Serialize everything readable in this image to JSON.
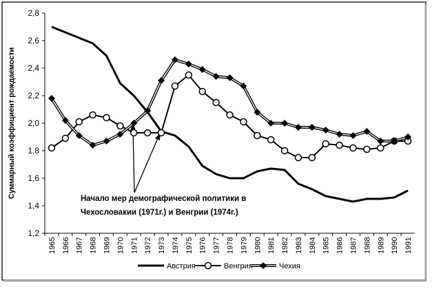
{
  "chart_data": {
    "type": "line",
    "y_label": "Суммарный коэффициент рождаемости",
    "annotation": [
      "Начало мер демографической политики в",
      "Чехословакии (1971г.) и Венгрии (1974г.)"
    ],
    "categories": [
      "1965",
      "1966",
      "1967",
      "1968",
      "1969",
      "1970",
      "1971",
      "1972",
      "1973",
      "1974",
      "1975",
      "1976",
      "1977",
      "1978",
      "1979",
      "1980",
      "1981",
      "1982",
      "1983",
      "1984",
      "1985",
      "1986",
      "1987",
      "1988",
      "1989",
      "1990",
      "1991"
    ],
    "series": [
      {
        "name": "Австрия",
        "color": "#000000",
        "marker": "none",
        "values": [
          2.7,
          2.66,
          2.62,
          2.58,
          2.49,
          2.29,
          2.2,
          2.08,
          1.94,
          1.91,
          1.83,
          1.69,
          1.63,
          1.6,
          1.6,
          1.65,
          1.67,
          1.66,
          1.56,
          1.52,
          1.47,
          1.45,
          1.43,
          1.45,
          1.45,
          1.46,
          1.51
        ]
      },
      {
        "name": "Венгрия",
        "color": "#000000",
        "marker": "circle",
        "values": [
          1.82,
          1.89,
          2.01,
          2.06,
          2.04,
          1.98,
          1.93,
          1.93,
          1.93,
          2.27,
          2.35,
          2.23,
          2.15,
          2.06,
          2.01,
          1.91,
          1.88,
          1.8,
          1.75,
          1.75,
          1.85,
          1.84,
          1.82,
          1.81,
          1.82,
          1.87,
          1.87
        ]
      },
      {
        "name": "Чехия",
        "color": "#000000",
        "marker": "diamond",
        "values": [
          2.18,
          2.02,
          1.91,
          1.84,
          1.87,
          1.92,
          2.0,
          2.09,
          2.31,
          2.46,
          2.43,
          2.39,
          2.34,
          2.33,
          2.27,
          2.08,
          2.0,
          2.0,
          1.97,
          1.97,
          1.95,
          1.92,
          1.91,
          1.94,
          1.87,
          1.87,
          1.9
        ]
      }
    ],
    "ylim": [
      1.2,
      2.8
    ],
    "yticks": [
      {
        "value": 1.2,
        "label": "1,2"
      },
      {
        "value": 1.4,
        "label": "1,4"
      },
      {
        "value": 1.6,
        "label": "1,6"
      },
      {
        "value": 1.8,
        "label": "1,8"
      },
      {
        "value": 2.0,
        "label": "2,0"
      },
      {
        "value": 2.2,
        "label": "2,2"
      },
      {
        "value": 2.4,
        "label": "2,4"
      },
      {
        "value": 2.6,
        "label": "2,6"
      },
      {
        "value": 2.8,
        "label": "2,8"
      }
    ],
    "grid": false,
    "legend": "bottom"
  }
}
